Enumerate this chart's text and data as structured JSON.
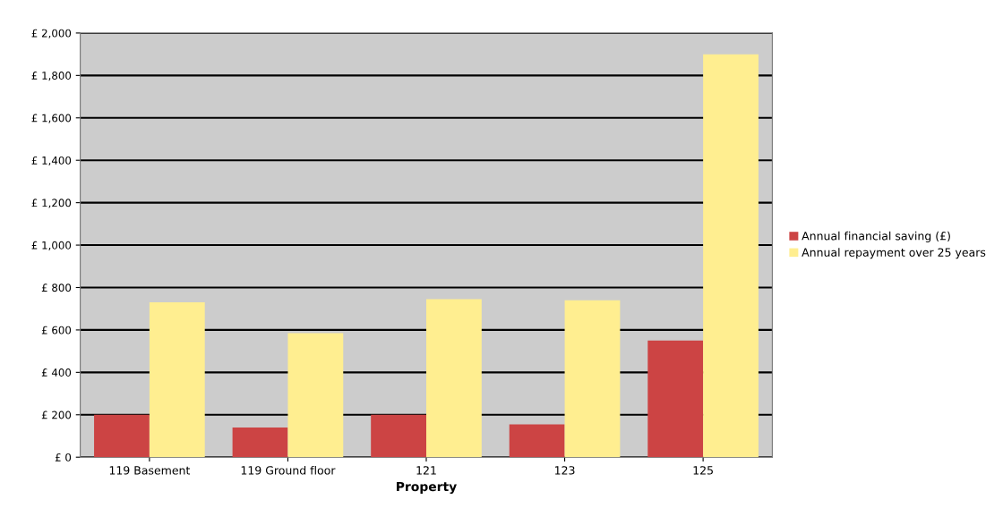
{
  "chart_data": {
    "type": "bar",
    "xlabel": "Property",
    "categories": [
      "119 Basement",
      "119 Ground floor",
      "121",
      "123",
      "125"
    ],
    "series": [
      {
        "name": "Annual financial saving (£)",
        "color": "#cc4444",
        "values": [
          200,
          140,
          200,
          155,
          550
        ]
      },
      {
        "name": "Annual repayment over 25 years",
        "color": "#ffee90",
        "values": [
          730,
          585,
          745,
          740,
          1900
        ]
      }
    ],
    "ylim": [
      0,
      2000
    ],
    "yticks": [
      {
        "value": 0,
        "label": "£ 0"
      },
      {
        "value": 200,
        "label": "£ 200"
      },
      {
        "value": 400,
        "label": "£ 400"
      },
      {
        "value": 600,
        "label": "£ 600"
      },
      {
        "value": 800,
        "label": "£ 800"
      },
      {
        "value": 1000,
        "label": "£ 1,000"
      },
      {
        "value": 1200,
        "label": "£ 1,200"
      },
      {
        "value": 1400,
        "label": "£ 1,400"
      },
      {
        "value": 1600,
        "label": "£ 1,600"
      },
      {
        "value": 1800,
        "label": "£ 1,800"
      },
      {
        "value": 2000,
        "label": "£ 2,000"
      }
    ],
    "grid": "y",
    "legend": "right"
  }
}
